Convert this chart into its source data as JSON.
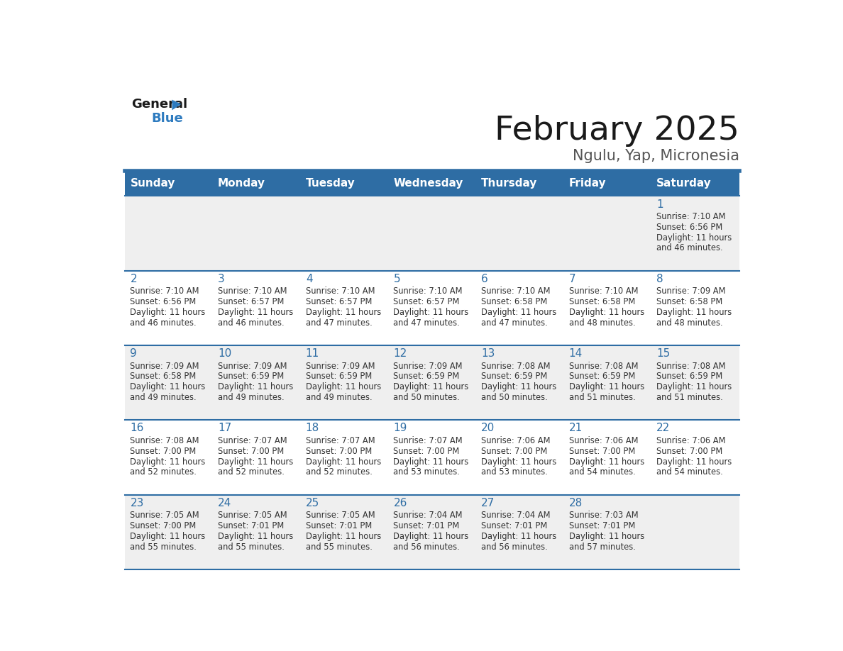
{
  "title": "February 2025",
  "subtitle": "Ngulu, Yap, Micronesia",
  "days_of_week": [
    "Sunday",
    "Monday",
    "Tuesday",
    "Wednesday",
    "Thursday",
    "Friday",
    "Saturday"
  ],
  "header_bg": "#2e6da4",
  "header_text": "#ffffff",
  "cell_bg_light": "#efefef",
  "cell_bg_white": "#ffffff",
  "divider_color": "#2e6da4",
  "text_color": "#333333",
  "day_num_color": "#2e6da4",
  "calendar": [
    [
      null,
      null,
      null,
      null,
      null,
      null,
      {
        "day": 1,
        "sunrise": "7:10 AM",
        "sunset": "6:56 PM",
        "daylight": "11 hours and 46 minutes."
      }
    ],
    [
      {
        "day": 2,
        "sunrise": "7:10 AM",
        "sunset": "6:56 PM",
        "daylight": "11 hours and 46 minutes."
      },
      {
        "day": 3,
        "sunrise": "7:10 AM",
        "sunset": "6:57 PM",
        "daylight": "11 hours and 46 minutes."
      },
      {
        "day": 4,
        "sunrise": "7:10 AM",
        "sunset": "6:57 PM",
        "daylight": "11 hours and 47 minutes."
      },
      {
        "day": 5,
        "sunrise": "7:10 AM",
        "sunset": "6:57 PM",
        "daylight": "11 hours and 47 minutes."
      },
      {
        "day": 6,
        "sunrise": "7:10 AM",
        "sunset": "6:58 PM",
        "daylight": "11 hours and 47 minutes."
      },
      {
        "day": 7,
        "sunrise": "7:10 AM",
        "sunset": "6:58 PM",
        "daylight": "11 hours and 48 minutes."
      },
      {
        "day": 8,
        "sunrise": "7:09 AM",
        "sunset": "6:58 PM",
        "daylight": "11 hours and 48 minutes."
      }
    ],
    [
      {
        "day": 9,
        "sunrise": "7:09 AM",
        "sunset": "6:58 PM",
        "daylight": "11 hours and 49 minutes."
      },
      {
        "day": 10,
        "sunrise": "7:09 AM",
        "sunset": "6:59 PM",
        "daylight": "11 hours and 49 minutes."
      },
      {
        "day": 11,
        "sunrise": "7:09 AM",
        "sunset": "6:59 PM",
        "daylight": "11 hours and 49 minutes."
      },
      {
        "day": 12,
        "sunrise": "7:09 AM",
        "sunset": "6:59 PM",
        "daylight": "11 hours and 50 minutes."
      },
      {
        "day": 13,
        "sunrise": "7:08 AM",
        "sunset": "6:59 PM",
        "daylight": "11 hours and 50 minutes."
      },
      {
        "day": 14,
        "sunrise": "7:08 AM",
        "sunset": "6:59 PM",
        "daylight": "11 hours and 51 minutes."
      },
      {
        "day": 15,
        "sunrise": "7:08 AM",
        "sunset": "6:59 PM",
        "daylight": "11 hours and 51 minutes."
      }
    ],
    [
      {
        "day": 16,
        "sunrise": "7:08 AM",
        "sunset": "7:00 PM",
        "daylight": "11 hours and 52 minutes."
      },
      {
        "day": 17,
        "sunrise": "7:07 AM",
        "sunset": "7:00 PM",
        "daylight": "11 hours and 52 minutes."
      },
      {
        "day": 18,
        "sunrise": "7:07 AM",
        "sunset": "7:00 PM",
        "daylight": "11 hours and 52 minutes."
      },
      {
        "day": 19,
        "sunrise": "7:07 AM",
        "sunset": "7:00 PM",
        "daylight": "11 hours and 53 minutes."
      },
      {
        "day": 20,
        "sunrise": "7:06 AM",
        "sunset": "7:00 PM",
        "daylight": "11 hours and 53 minutes."
      },
      {
        "day": 21,
        "sunrise": "7:06 AM",
        "sunset": "7:00 PM",
        "daylight": "11 hours and 54 minutes."
      },
      {
        "day": 22,
        "sunrise": "7:06 AM",
        "sunset": "7:00 PM",
        "daylight": "11 hours and 54 minutes."
      }
    ],
    [
      {
        "day": 23,
        "sunrise": "7:05 AM",
        "sunset": "7:00 PM",
        "daylight": "11 hours and 55 minutes."
      },
      {
        "day": 24,
        "sunrise": "7:05 AM",
        "sunset": "7:01 PM",
        "daylight": "11 hours and 55 minutes."
      },
      {
        "day": 25,
        "sunrise": "7:05 AM",
        "sunset": "7:01 PM",
        "daylight": "11 hours and 55 minutes."
      },
      {
        "day": 26,
        "sunrise": "7:04 AM",
        "sunset": "7:01 PM",
        "daylight": "11 hours and 56 minutes."
      },
      {
        "day": 27,
        "sunrise": "7:04 AM",
        "sunset": "7:01 PM",
        "daylight": "11 hours and 56 minutes."
      },
      {
        "day": 28,
        "sunrise": "7:03 AM",
        "sunset": "7:01 PM",
        "daylight": "11 hours and 57 minutes."
      },
      null
    ]
  ]
}
